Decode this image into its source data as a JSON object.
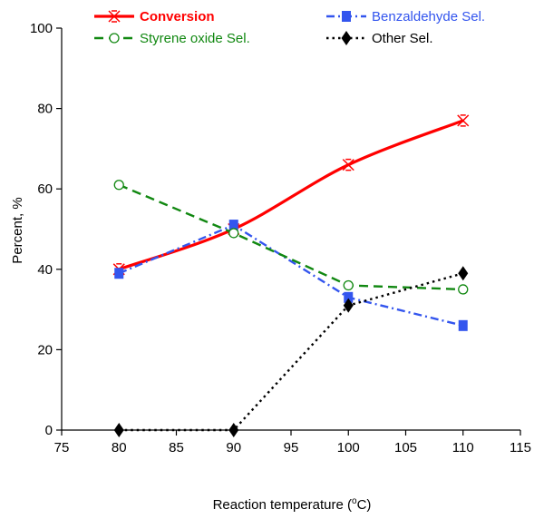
{
  "chart_data": {
    "type": "line",
    "title": "",
    "xlabel_main": "Reaction temperature (",
    "xlabel_sup": "o",
    "xlabel_end": "C)",
    "ylabel": "Percent, %",
    "xlim": [
      75,
      115
    ],
    "ylim": [
      0,
      100
    ],
    "x_ticks": [
      75,
      80,
      85,
      90,
      95,
      100,
      105,
      110,
      115
    ],
    "y_ticks": [
      0,
      20,
      40,
      60,
      80,
      100
    ],
    "grid": false,
    "legend_position": "top",
    "x": [
      80,
      90,
      100,
      110
    ],
    "series": [
      {
        "name": "Conversion",
        "values": [
          40,
          50,
          66,
          77
        ],
        "color": "#ff0000",
        "marker": "asterisk",
        "dash": "solid",
        "label_bold": true
      },
      {
        "name": "Benzaldehyde Sel.",
        "values": [
          39,
          51,
          33,
          26
        ],
        "color": "#3355ee",
        "marker": "square",
        "dash": "dashdot",
        "label_bold": false
      },
      {
        "name": "Styrene oxide Sel.",
        "values": [
          61,
          49,
          36,
          35
        ],
        "color": "#118811",
        "marker": "circle",
        "dash": "dashed",
        "label_bold": false
      },
      {
        "name": "Other Sel.",
        "values": [
          0,
          0,
          31,
          39
        ],
        "color": "#000000",
        "marker": "diamond",
        "dash": "dotted",
        "label_bold": false
      }
    ]
  }
}
